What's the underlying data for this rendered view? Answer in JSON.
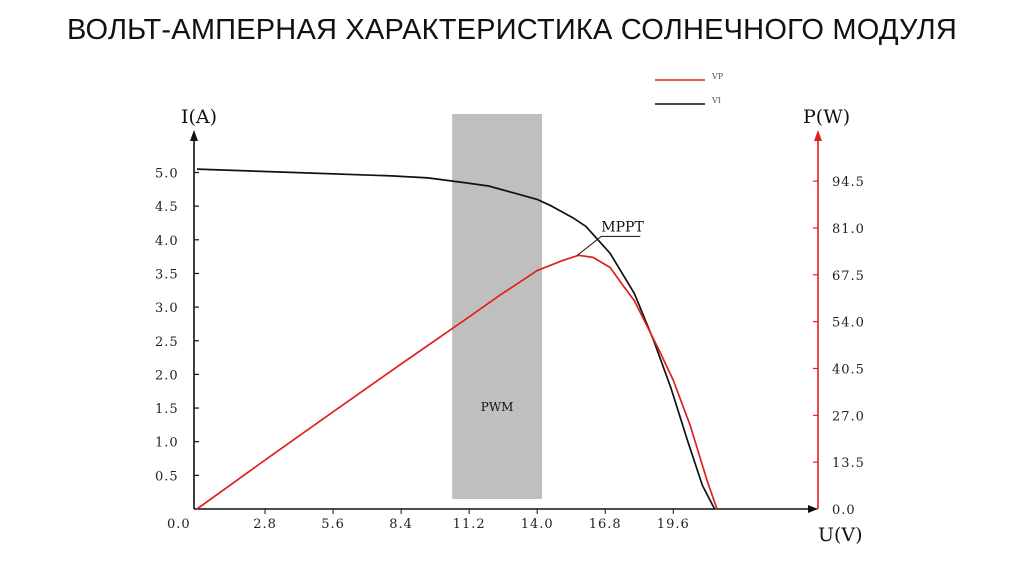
{
  "title": "ВОЛЬТ-АМПЕРНАЯ ХАРАКТЕРИСТИКА СОЛНЕЧНОГО МОДУЛЯ",
  "chart_data": {
    "type": "line",
    "xlabel": "U(V)",
    "ylabel_left": "I(A)",
    "ylabel_right": "P(W)",
    "x_ticks": [
      "0.0",
      "2.8",
      "5.6",
      "8.4",
      "11.2",
      "14.0",
      "16.8",
      "19.6"
    ],
    "y_left_ticks": [
      "0.5",
      "1.0",
      "1.5",
      "2.0",
      "2.5",
      "3.0",
      "3.5",
      "4.0",
      "4.5",
      "5.0"
    ],
    "y_right_ticks": [
      "0.0",
      "13.5",
      "27.0",
      "40.5",
      "54.0",
      "67.5",
      "81.0",
      "94.5"
    ],
    "xlim": [
      0,
      22.5
    ],
    "ylim_left": [
      0,
      5.5
    ],
    "ylim_right": [
      0,
      108
    ],
    "legend": {
      "position": "top-right",
      "entries": [
        {
          "label": "VP",
          "color": "#e02020"
        },
        {
          "label": "VI",
          "color": "#111111"
        }
      ]
    },
    "series": [
      {
        "name": "VI",
        "axis": "left",
        "color": "#111111",
        "x": [
          0,
          4,
          8,
          9.5,
          11,
          12,
          13,
          14,
          14.6,
          15.5,
          16,
          17,
          18,
          18.8,
          19.5,
          20.2,
          20.8,
          21.3
        ],
        "y": [
          5.05,
          5.0,
          4.95,
          4.92,
          4.85,
          4.8,
          4.7,
          4.6,
          4.5,
          4.32,
          4.2,
          3.8,
          3.2,
          2.5,
          1.8,
          1.0,
          0.35,
          0.0
        ]
      },
      {
        "name": "VP",
        "axis": "right",
        "color": "#e02020",
        "x": [
          0,
          2.8,
          5.6,
          8.4,
          11.2,
          12.5,
          14.0,
          15.0,
          15.7,
          16.3,
          17.0,
          17.5,
          18.0,
          19.0,
          19.6,
          20.3,
          21.0,
          21.4
        ],
        "y": [
          0,
          14.1,
          28.0,
          41.8,
          55.4,
          61.8,
          68.7,
          71.5,
          73.1,
          72.5,
          69.6,
          64.7,
          60.0,
          46.0,
          37.1,
          24.0,
          8.0,
          0
        ]
      }
    ],
    "annotations": [
      {
        "text": "MPPT",
        "x": 15.65,
        "y_right": 73.1
      },
      {
        "text": "PWM",
        "band_x": [
          10.5,
          14.2
        ]
      }
    ]
  }
}
